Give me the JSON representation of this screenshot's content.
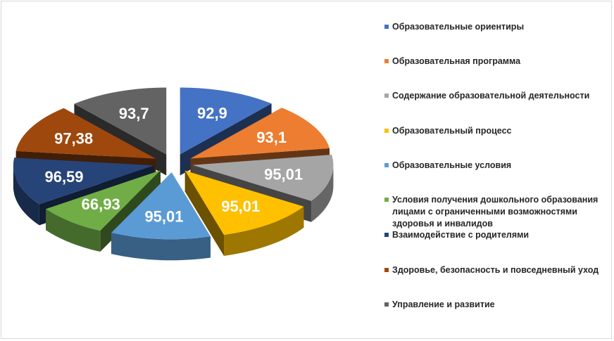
{
  "chart_data": {
    "type": "pie",
    "title": "",
    "values": [
      92.9,
      93.1,
      95.01,
      95.01,
      95.01,
      66.93,
      96.59,
      97.38,
      93.7
    ],
    "data_labels": [
      "92,9",
      "93,1",
      "95,01",
      "95,01",
      "95,01",
      "66,93",
      "96,59",
      "97,38",
      "93,7"
    ],
    "categories": [
      "Образовательные ориентиры",
      "Образовательная программа",
      "Содержание образовательной деятельности",
      "Образовательный процесс",
      "Образовательные условия",
      "Условия получения дошкольного образования лицами с ограниченными возможностями здоровья и инвалидов",
      "Взаимодействие с родителями",
      "Здоровье, безопасность и повседневный уход",
      "Управление и развитие"
    ],
    "colors": [
      "#4472c4",
      "#ed7d31",
      "#a5a5a5",
      "#ffc000",
      "#5b9bd5",
      "#70ad47",
      "#264478",
      "#9e480e",
      "#636363"
    ],
    "style": "exploded-3d-pie",
    "legend_position": "right"
  }
}
